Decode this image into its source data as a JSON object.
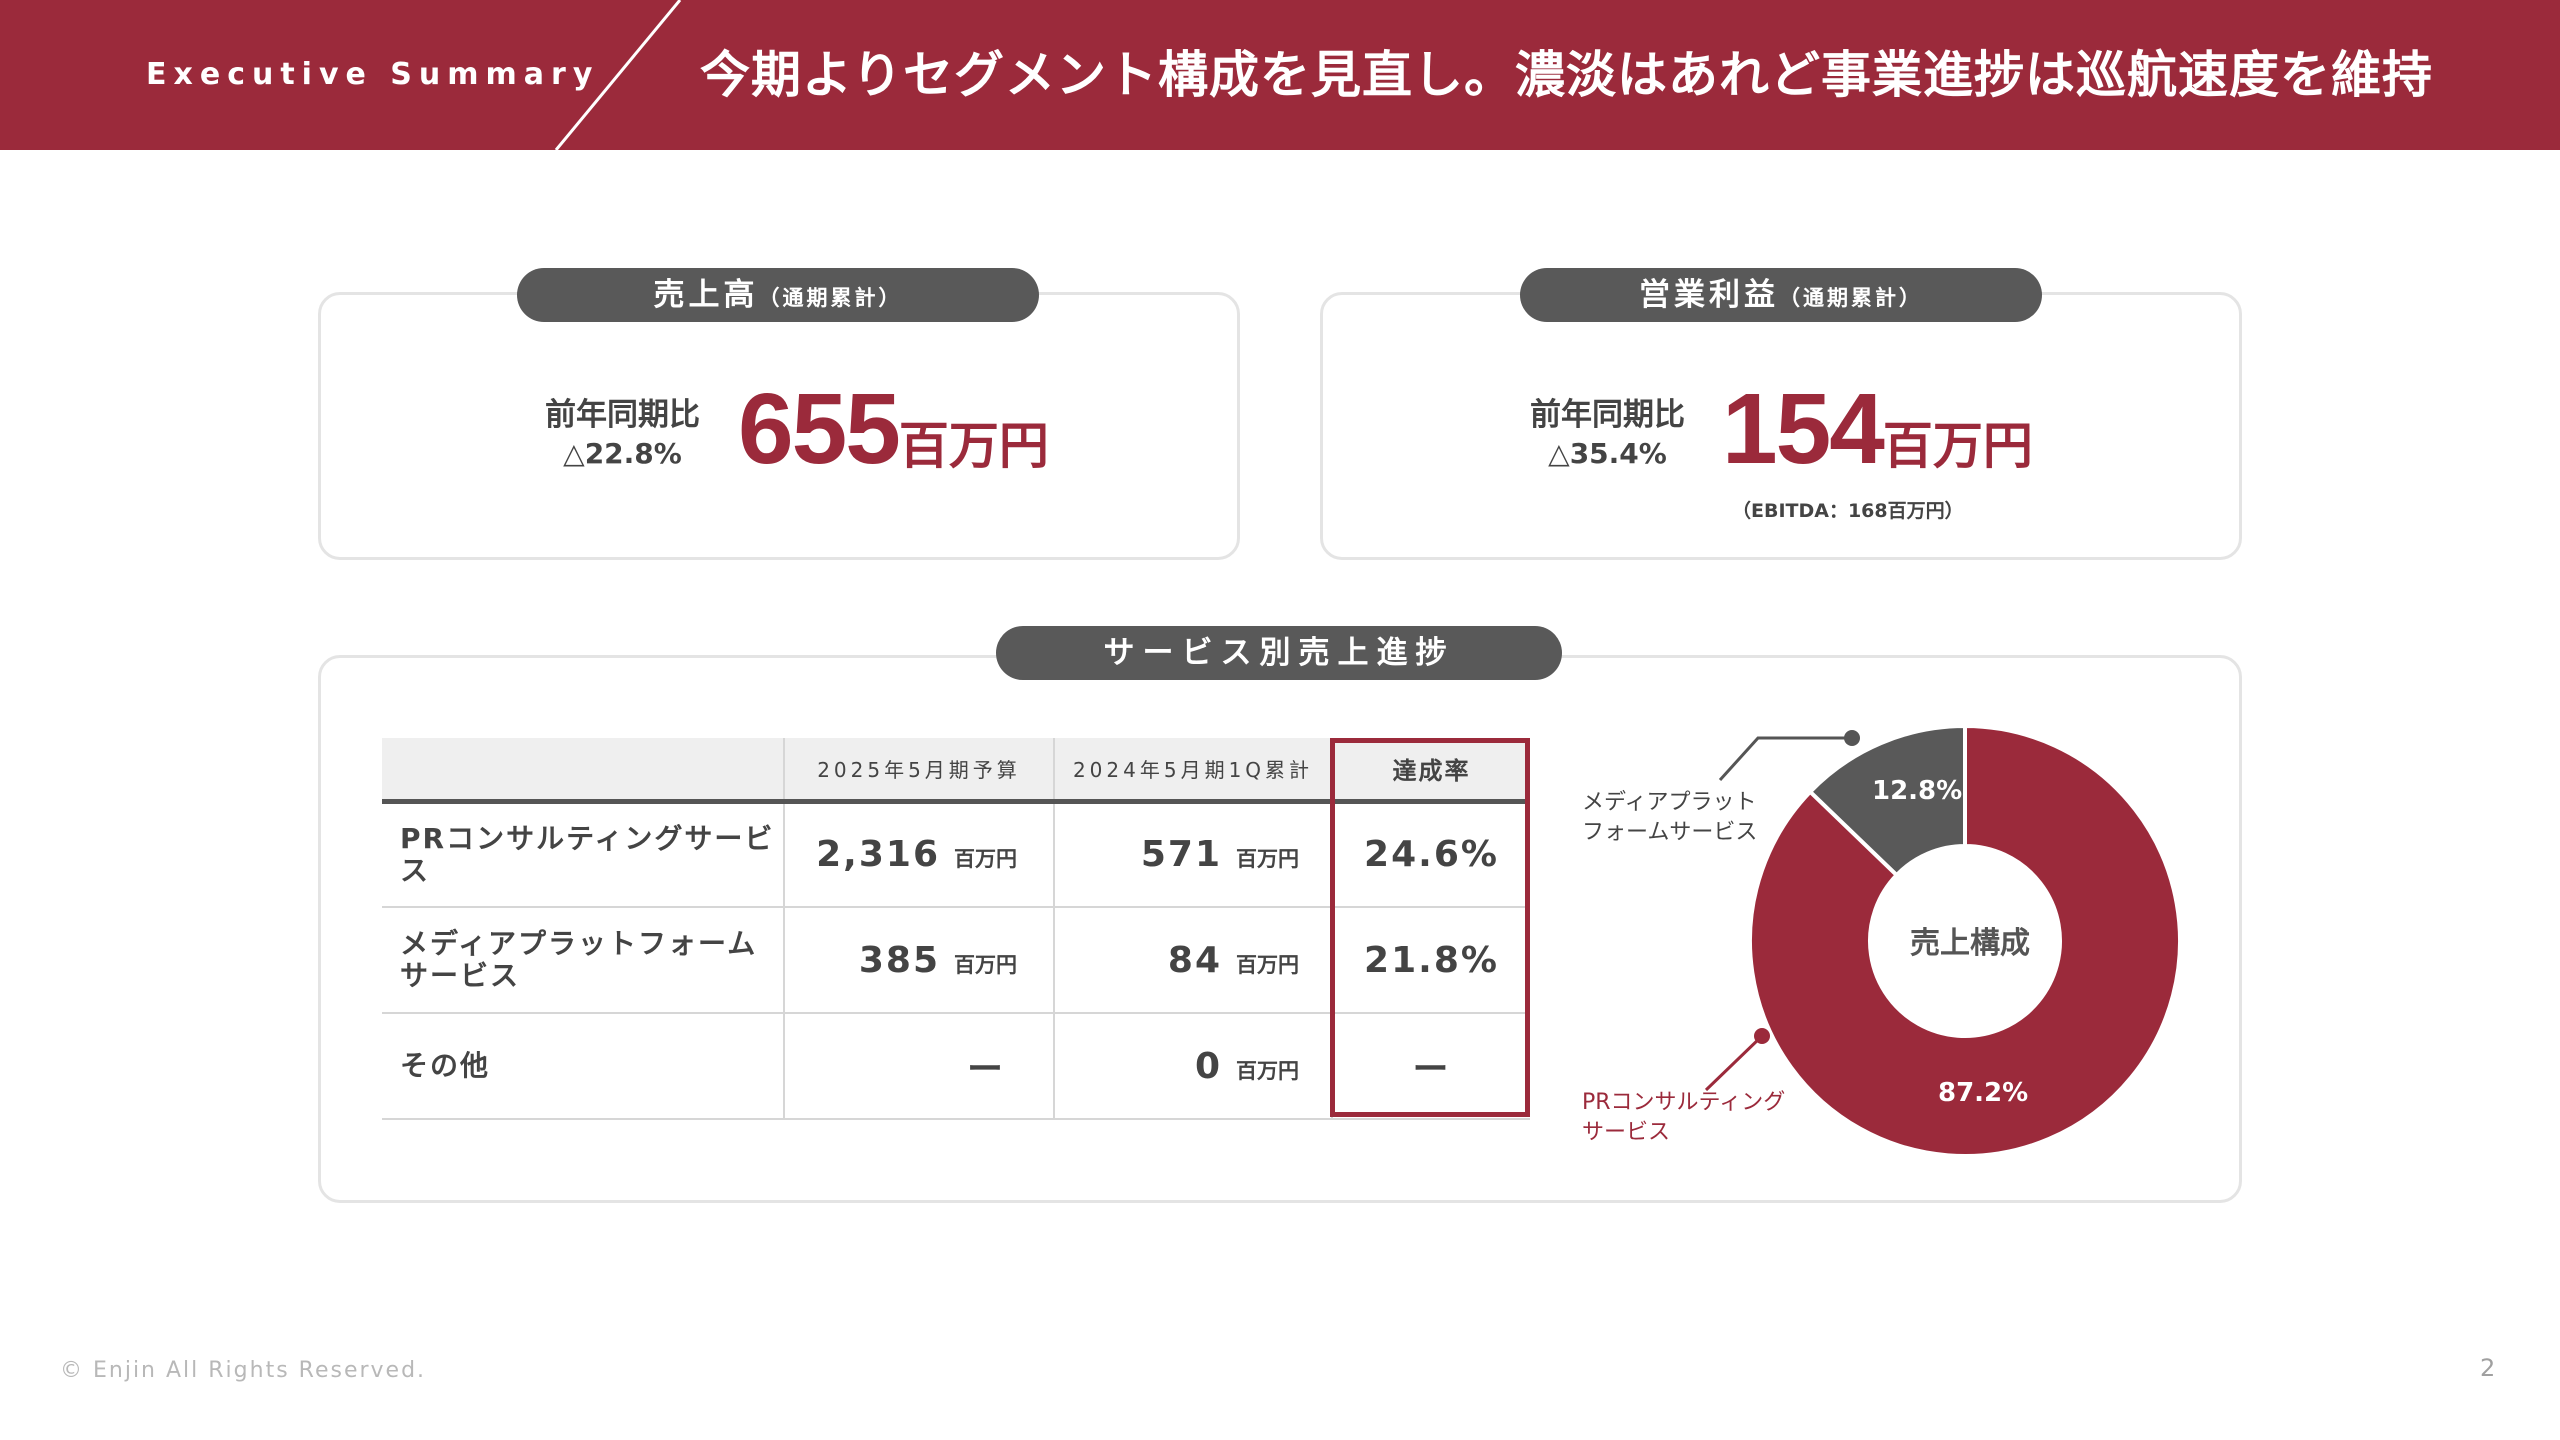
{
  "header": {
    "tag": "Executive Summary",
    "title": "今期よりセグメント構成を見直し。濃淡はあれど事業進捗は巡航速度を維持",
    "bg_color": "#9b2a3b"
  },
  "kpi_sales": {
    "pill_main": "売上高",
    "pill_sub": "（通期累計）",
    "cmp_label": "前年同期比",
    "cmp_value": "△22.8%",
    "value": "655",
    "unit": "百万円"
  },
  "kpi_profit": {
    "pill_main": "営業利益",
    "pill_sub": "（通期累計）",
    "cmp_label": "前年同期比",
    "cmp_value": "△35.4%",
    "value": "154",
    "unit": "百万円",
    "ebitda_prefix": "（EBITDA：168",
    "ebitda_unit": "百万円",
    "ebitda_suffix": "）"
  },
  "services": {
    "pill": "サービス別売上進捗",
    "columns": [
      "",
      "2025年5月期予算",
      "2024年5月期1Q累計",
      "達成率"
    ],
    "rows": [
      {
        "name": "PRコンサルティングサービス",
        "budget": "2,316",
        "budget_unit": "百万円",
        "actual": "571",
        "actual_unit": "百万円",
        "rate": "24.6%"
      },
      {
        "name": "メディアプラットフォーム\nサービス",
        "budget": "385",
        "budget_unit": "百万円",
        "actual": "84",
        "actual_unit": "百万円",
        "rate": "21.8%"
      },
      {
        "name": "その他",
        "budget": "ー",
        "budget_unit": "",
        "actual": "0",
        "actual_unit": "百万円",
        "rate": "ー"
      }
    ],
    "highlight_color": "#9b2a3b"
  },
  "composition": {
    "center_label": "売上構成",
    "legend_media": "メディアプラット\nフォームサービス",
    "legend_pr": "PRコンサルティング\nサービス",
    "media_label_color": "#444444",
    "pr_label_color": "#9b2a3b"
  },
  "chart_data": {
    "type": "pie",
    "title": "売上構成",
    "categories": [
      "PRコンサルティングサービス",
      "メディアプラットフォームサービス"
    ],
    "values": [
      87.2,
      12.8
    ],
    "value_labels": [
      "87.2%",
      "12.8%"
    ],
    "colors": [
      "#9b2a3b",
      "#595959"
    ],
    "donut": true
  },
  "footer": {
    "copyright": "© Enjin All Rights Reserved.",
    "page": "2"
  }
}
